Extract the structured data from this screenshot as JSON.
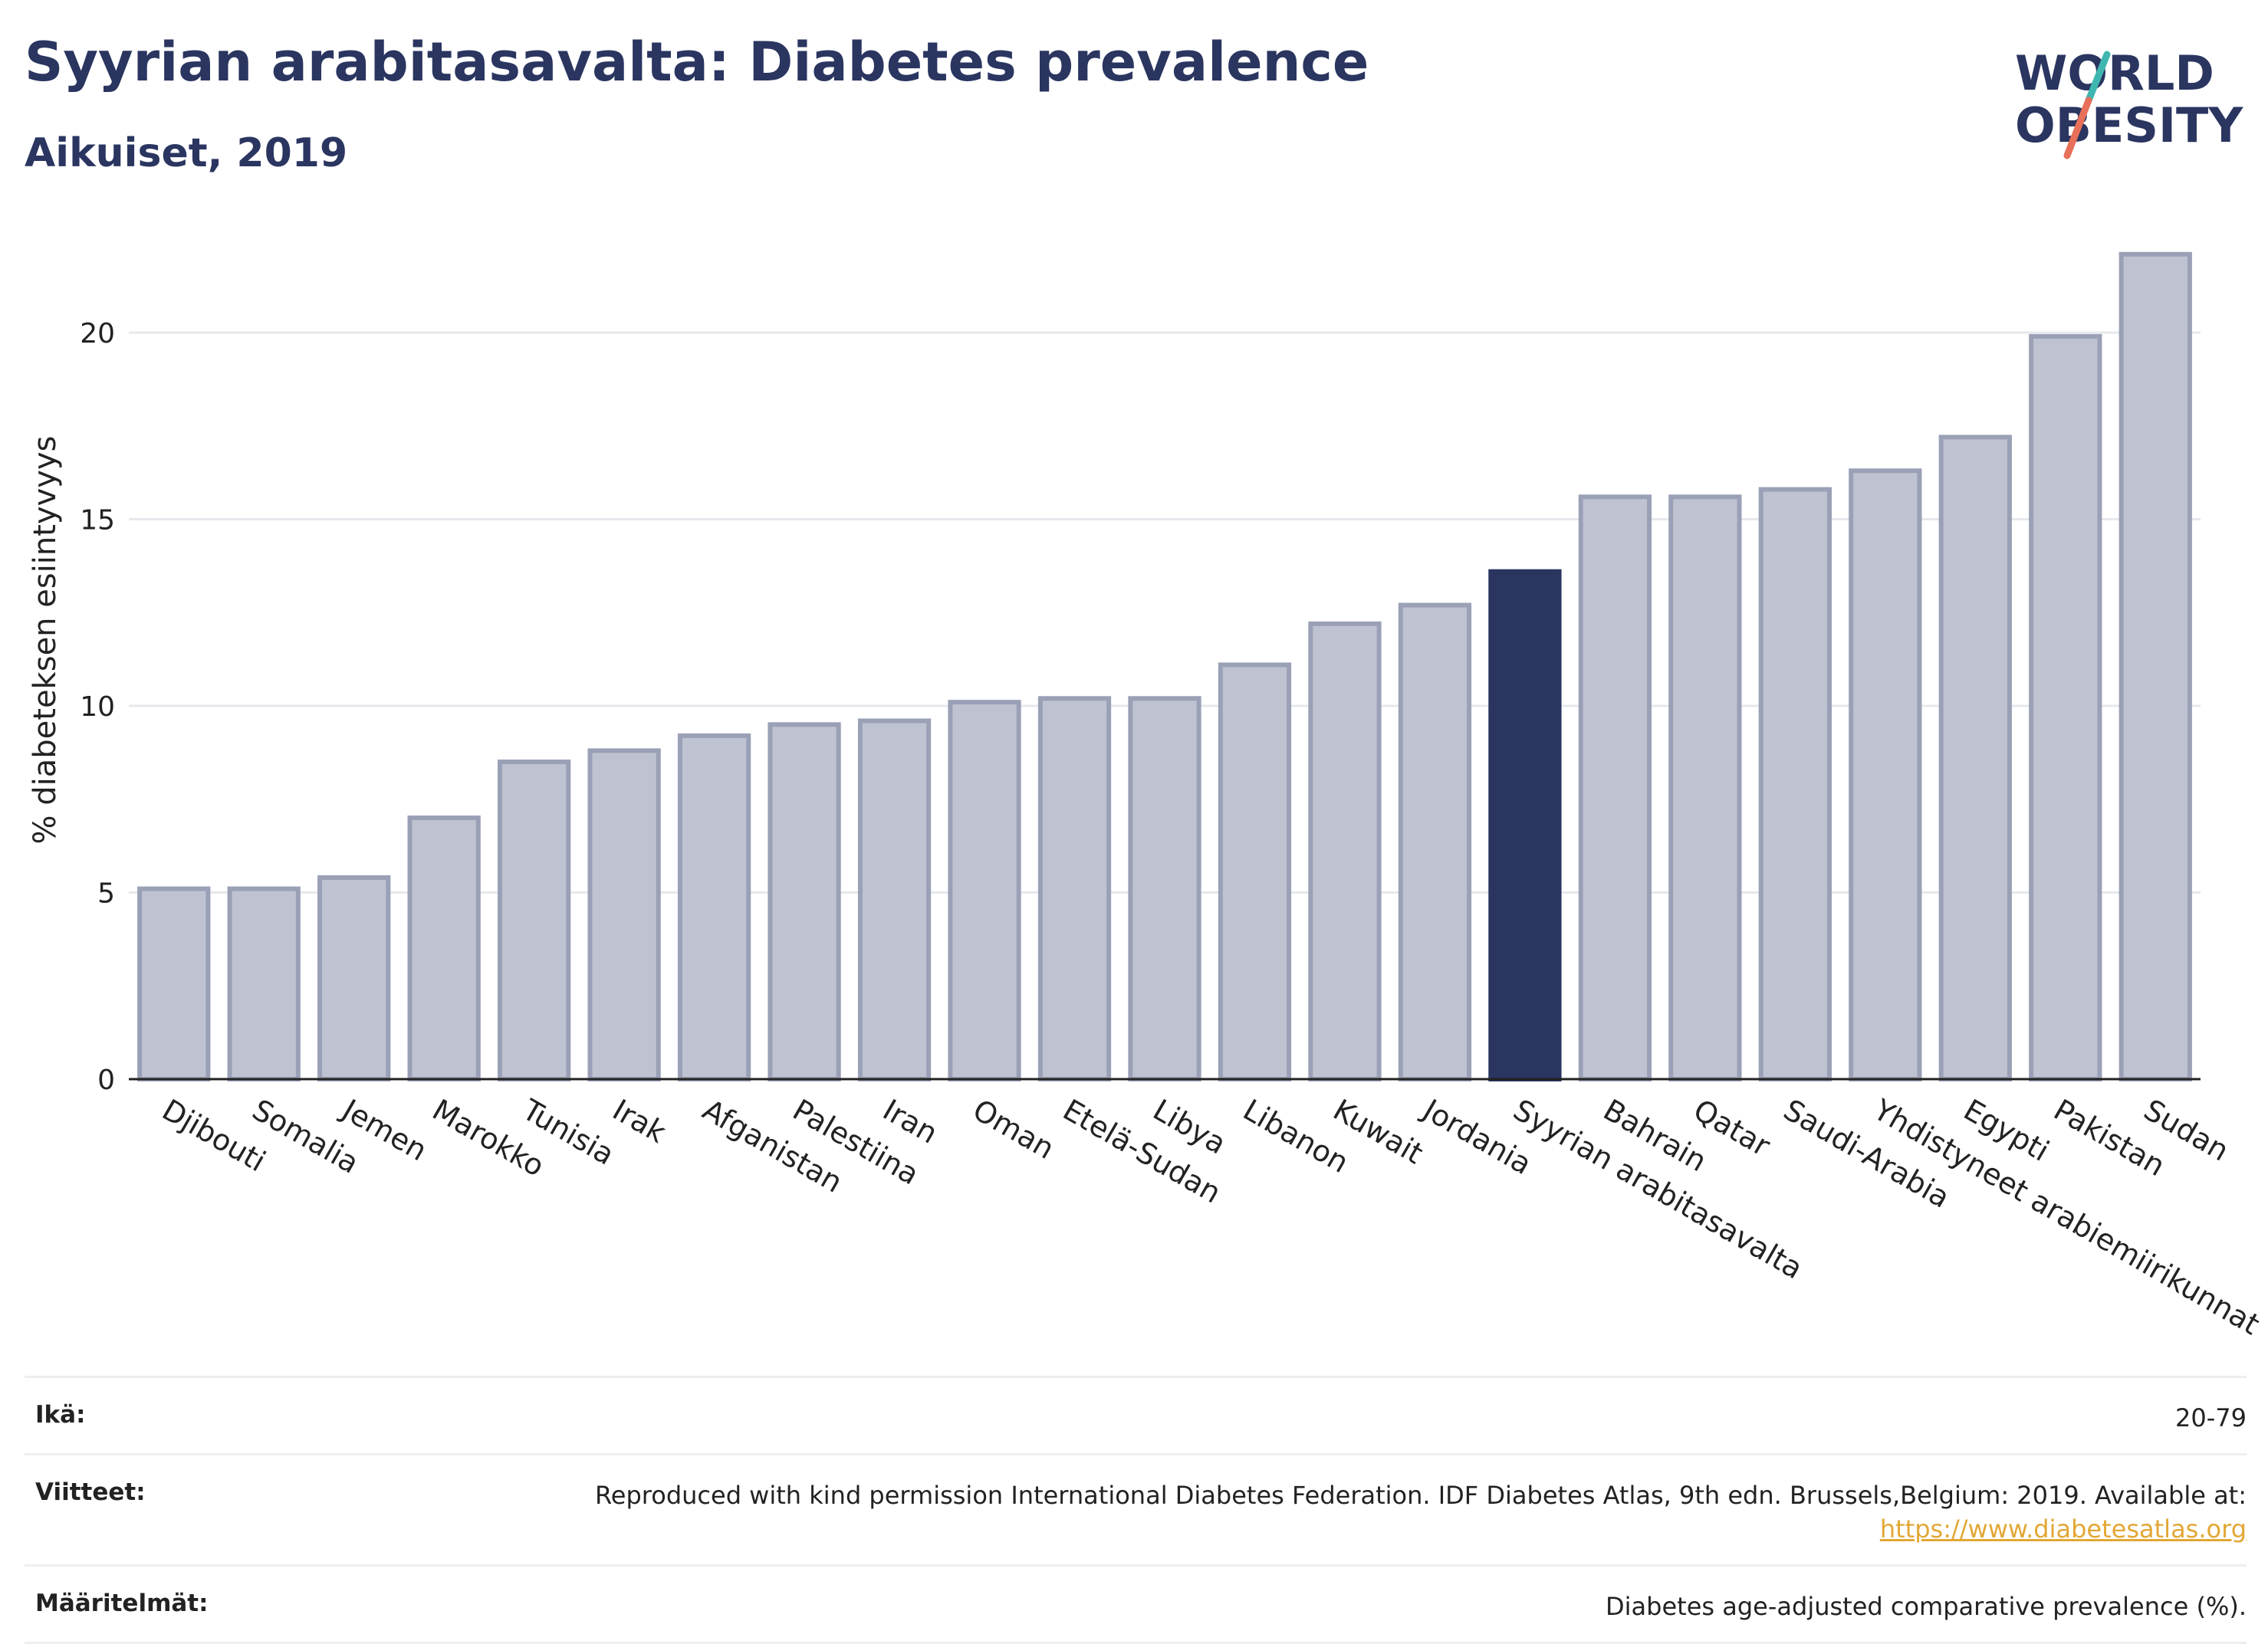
{
  "header": {
    "title": "Syyrian arabitasavalta: Diabetes prevalence",
    "subtitle": "Aikuiset, 2019"
  },
  "logo": {
    "line1": "WORLD",
    "line2": "OBESITY"
  },
  "colors": {
    "bar": "#bfc3d1",
    "bar_border": "#9aa0b6",
    "highlight": "#2a3560",
    "title": "#2a3560",
    "link": "#e2a735"
  },
  "chart_data": {
    "type": "bar",
    "ylabel": "% diabeteksen esiintyvyys",
    "xlabel": "",
    "ylim": [
      0,
      22.5
    ],
    "yticks": [
      0,
      5,
      10,
      15,
      20
    ],
    "grid": true,
    "highlight": "Syyrian arabitasavalta",
    "categories": [
      "Djibouti",
      "Somalia",
      "Jemen",
      "Marokko",
      "Tunisia",
      "Irak",
      "Afganistan",
      "Palestiina",
      "Iran",
      "Oman",
      "Etelä-Sudan",
      "Libya",
      "Libanon",
      "Kuwait",
      "Jordania",
      "Syyrian arabitasavalta",
      "Bahrain",
      "Qatar",
      "Saudi-Arabia",
      "Yhdistyneet arabiemiirikunnat",
      "Egypti",
      "Pakistan",
      "Sudan"
    ],
    "values": [
      5.1,
      5.1,
      5.4,
      7.0,
      8.5,
      8.8,
      9.2,
      9.5,
      9.6,
      10.1,
      10.2,
      10.2,
      11.1,
      12.2,
      12.7,
      13.6,
      15.6,
      15.6,
      15.8,
      16.3,
      17.2,
      19.9,
      22.1
    ]
  },
  "info": {
    "age_label": "Ikä:",
    "age_value": "20-79",
    "refs_label": "Viitteet:",
    "refs_text": "Reproduced with kind permission International Diabetes Federation. IDF Diabetes Atlas, 9th edn. Brussels,Belgium: 2019. Available at:",
    "refs_link": "https://www.diabetesatlas.org",
    "defs_label": "Määritelmät:",
    "defs_value": "Diabetes age-adjusted comparative prevalence (%)."
  }
}
